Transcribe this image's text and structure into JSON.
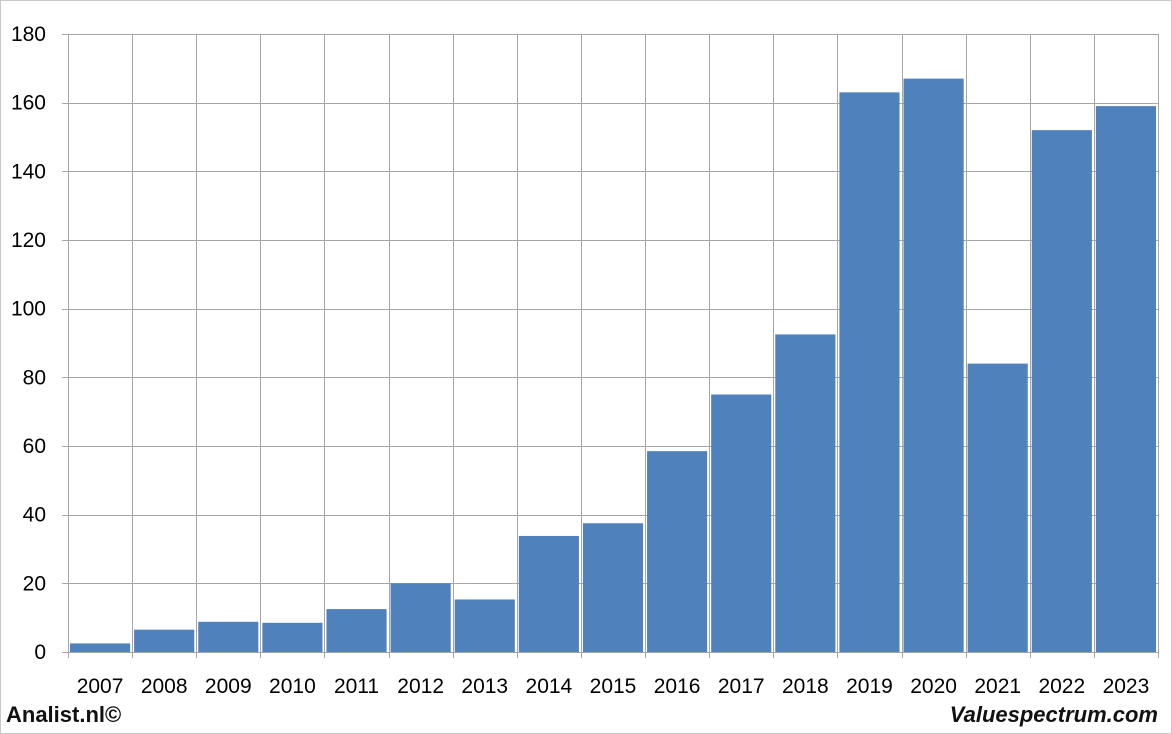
{
  "chart_data": {
    "type": "bar",
    "categories": [
      "2007",
      "2008",
      "2009",
      "2010",
      "2011",
      "2012",
      "2013",
      "2014",
      "2015",
      "2016",
      "2017",
      "2018",
      "2019",
      "2020",
      "2021",
      "2022",
      "2023"
    ],
    "values": [
      2.5,
      6.5,
      8.8,
      8.5,
      12.5,
      20,
      15.3,
      33.8,
      37.5,
      58.5,
      75,
      92.5,
      163,
      167,
      84,
      152,
      159
    ],
    "ylim": [
      0,
      180
    ],
    "yticks": [
      0,
      20,
      40,
      60,
      80,
      100,
      120,
      140,
      160,
      180
    ],
    "grid": true,
    "bar_color": "#4f81bd",
    "grid_color": "#a6a6a6"
  },
  "footer": {
    "left_label": "Analist.nl©",
    "right_label": "Valuespectrum.com"
  }
}
